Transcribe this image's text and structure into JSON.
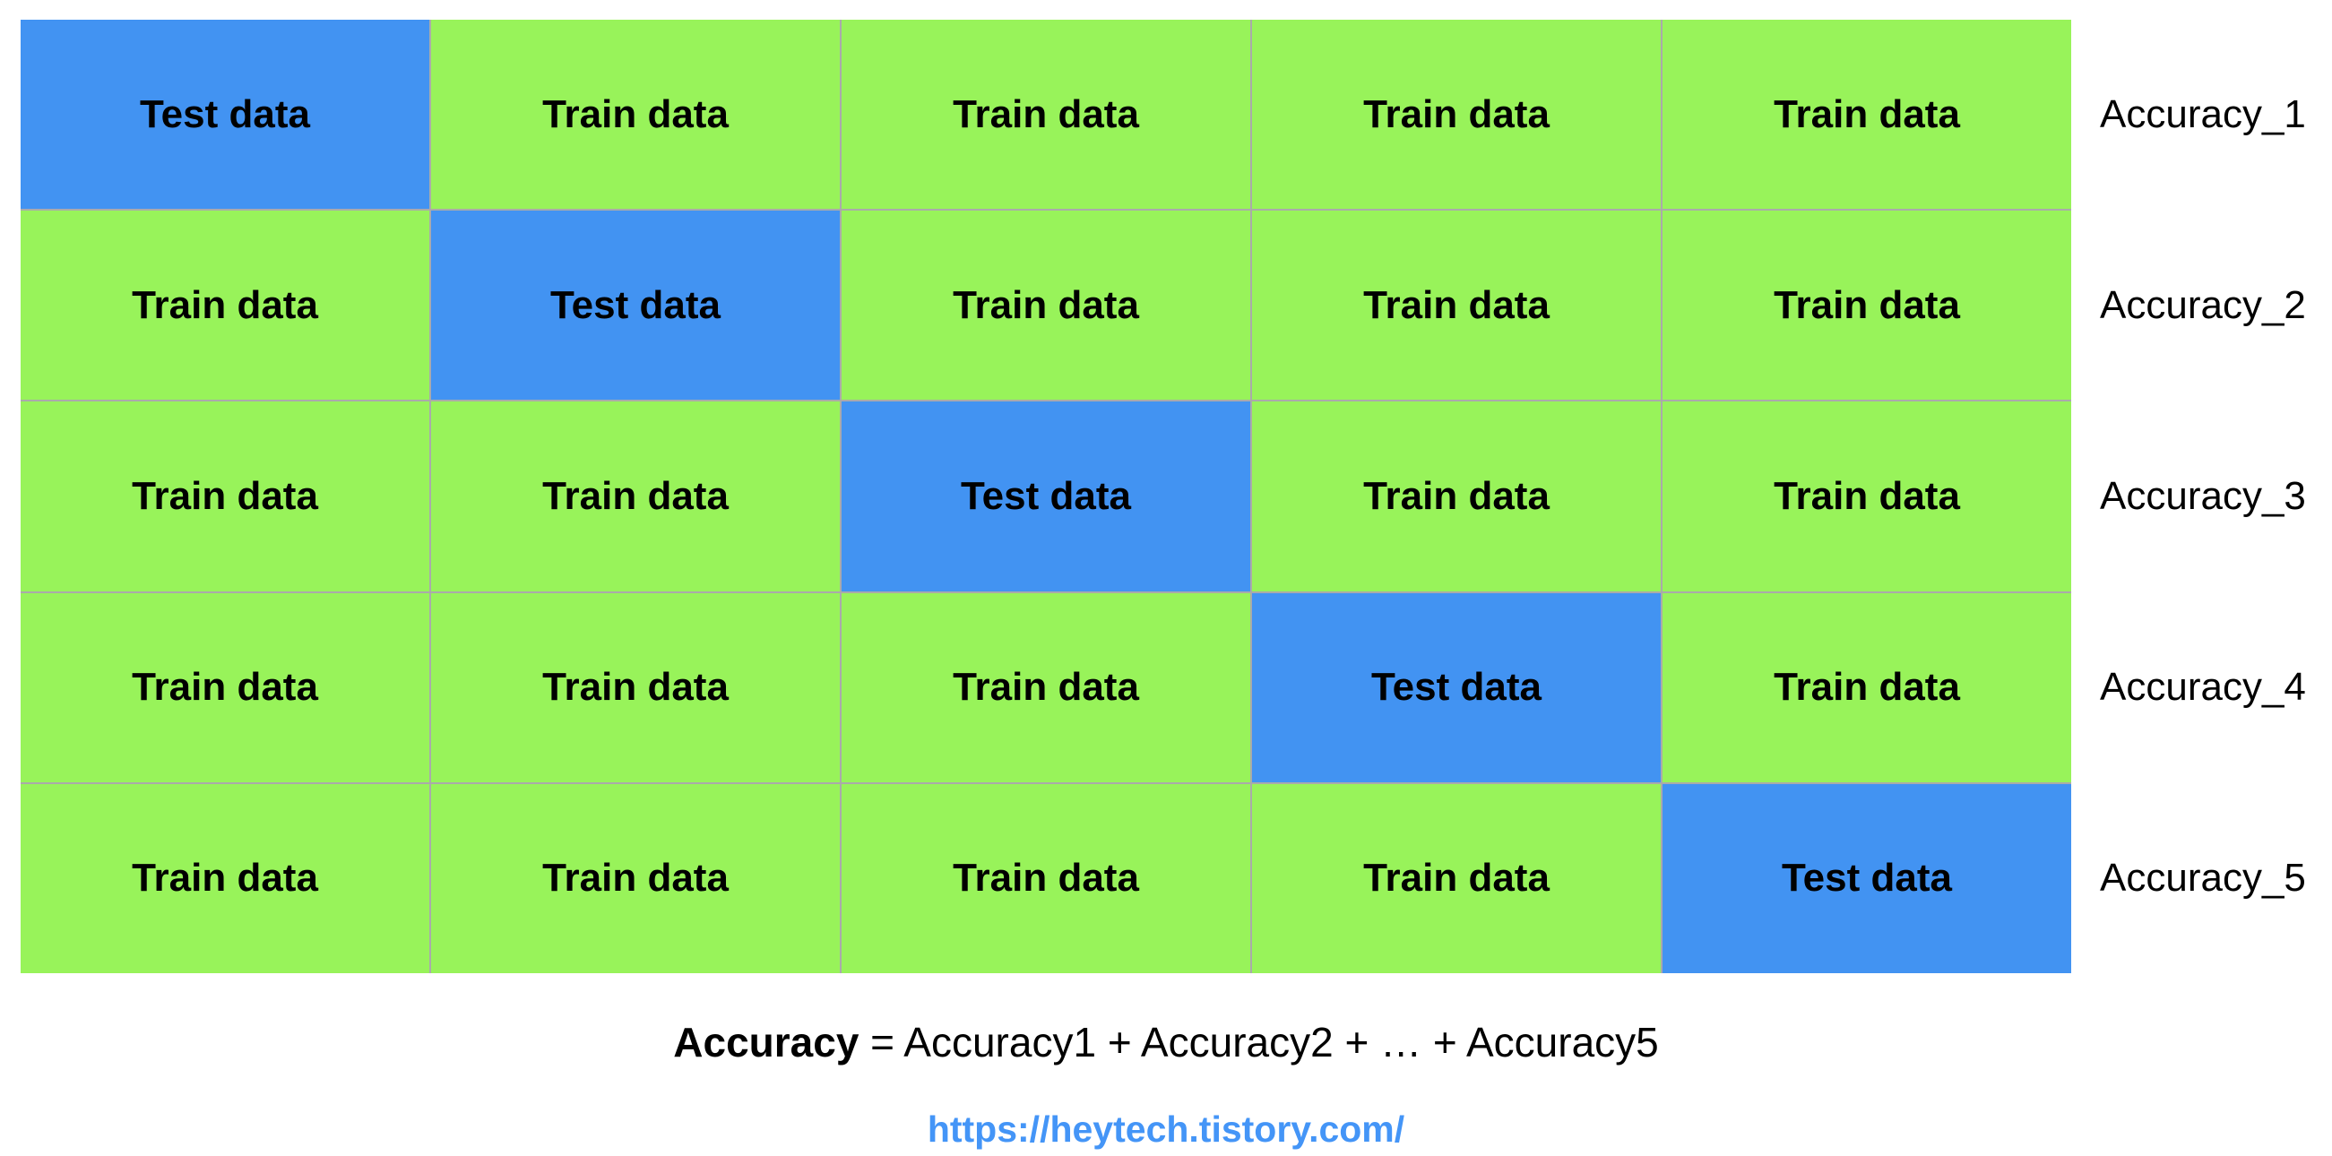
{
  "colors": {
    "train_green": "#98f35a",
    "test_blue": "#4293f2",
    "grid_line": "#aaaaaa",
    "link_blue": "#4495f7",
    "text_black": "#000000",
    "page_background": "#ffffff"
  },
  "grid": {
    "cell_labels": {
      "test": "Test data",
      "train": "Train data"
    },
    "rows": [
      {
        "cells": [
          "test",
          "train",
          "train",
          "train",
          "train"
        ],
        "label": "Accuracy_1"
      },
      {
        "cells": [
          "train",
          "test",
          "train",
          "train",
          "train"
        ],
        "label": "Accuracy_2"
      },
      {
        "cells": [
          "train",
          "train",
          "test",
          "train",
          "train"
        ],
        "label": "Accuracy_3"
      },
      {
        "cells": [
          "train",
          "train",
          "train",
          "test",
          "train"
        ],
        "label": "Accuracy_4"
      },
      {
        "cells": [
          "train",
          "train",
          "train",
          "train",
          "test"
        ],
        "label": "Accuracy_5"
      }
    ]
  },
  "caption": {
    "bold_part": "Accuracy",
    "rest": " = Accuracy1 + Accuracy2 + … + Accuracy5"
  },
  "footer_link": {
    "text": "https://heytech.tistory.com/"
  }
}
